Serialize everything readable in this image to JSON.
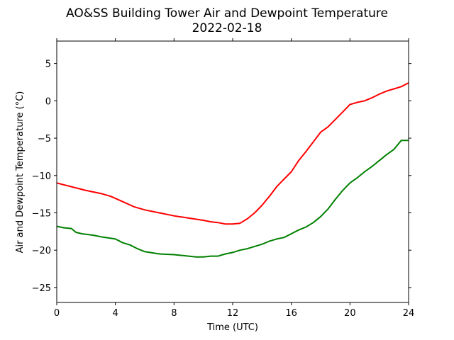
{
  "chart_data": {
    "type": "line",
    "title": "AO&SS Building Tower Air and Dewpoint Temperature",
    "subtitle": "2022-02-18",
    "xlabel": "Time (UTC)",
    "ylabel": "Air and Dewpoint Temperature (°C)",
    "xlim": [
      0,
      24
    ],
    "ylim": [
      -27,
      8
    ],
    "xticks": [
      0,
      4,
      8,
      12,
      16,
      20,
      24
    ],
    "yticks": [
      -25,
      -20,
      -15,
      -10,
      -5,
      0,
      5
    ],
    "grid": false,
    "series": [
      {
        "color": "#ff0000",
        "x": [
          0,
          1,
          2,
          3,
          3.7,
          4.5,
          5.3,
          6,
          7,
          8,
          9,
          10,
          10.5,
          11,
          11.5,
          12,
          12.5,
          13,
          13.5,
          14,
          14.5,
          15,
          15.5,
          16,
          16.5,
          17,
          17.5,
          18,
          18.5,
          19,
          19.5,
          20,
          20.5,
          21,
          21.5,
          22,
          22.5,
          23,
          23.5,
          24
        ],
        "y": [
          -11.0,
          -11.5,
          -12.0,
          -12.4,
          -12.8,
          -13.5,
          -14.2,
          -14.6,
          -15.0,
          -15.4,
          -15.7,
          -16.0,
          -16.2,
          -16.3,
          -16.5,
          -16.5,
          -16.4,
          -15.8,
          -15.0,
          -14.0,
          -12.8,
          -11.5,
          -10.5,
          -9.5,
          -8.0,
          -6.8,
          -5.5,
          -4.2,
          -3.5,
          -2.5,
          -1.5,
          -0.5,
          -0.2,
          0.0,
          0.4,
          0.9,
          1.3,
          1.6,
          1.9,
          2.4
        ]
      },
      {
        "color": "#008000",
        "x": [
          0,
          0.5,
          1,
          1.3,
          1.7,
          2.5,
          3,
          4,
          4.5,
          5,
          5.5,
          6,
          7,
          8,
          9,
          9.5,
          10,
          10.5,
          11,
          11.5,
          12,
          12.5,
          13,
          13.5,
          14,
          14.5,
          15,
          15.5,
          16,
          16.5,
          17,
          17.5,
          18,
          18.5,
          19,
          19.5,
          20,
          20.5,
          21,
          21.5,
          22,
          22.5,
          23,
          23.5,
          24
        ],
        "y": [
          -16.8,
          -17.0,
          -17.1,
          -17.6,
          -17.8,
          -18.0,
          -18.2,
          -18.5,
          -19.0,
          -19.3,
          -19.8,
          -20.2,
          -20.5,
          -20.6,
          -20.8,
          -20.9,
          -20.9,
          -20.8,
          -20.8,
          -20.5,
          -20.3,
          -20.0,
          -19.8,
          -19.5,
          -19.2,
          -18.8,
          -18.5,
          -18.3,
          -17.8,
          -17.3,
          -16.9,
          -16.3,
          -15.5,
          -14.5,
          -13.2,
          -12.0,
          -11.0,
          -10.3,
          -9.5,
          -8.8,
          -8.0,
          -7.2,
          -6.5,
          -5.3,
          -5.3
        ]
      }
    ]
  }
}
